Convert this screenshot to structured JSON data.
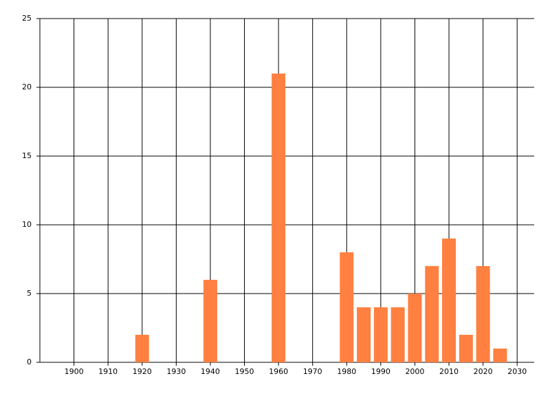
{
  "chart_data": {
    "type": "bar",
    "x": [
      1920,
      1940,
      1960,
      1980,
      1985,
      1990,
      1995,
      2000,
      2005,
      2010,
      2015,
      2020,
      2025
    ],
    "values": [
      2,
      6,
      21,
      8,
      4,
      4,
      4,
      5,
      7,
      9,
      2,
      7,
      1
    ],
    "color": "#ff8040",
    "xlim": [
      1890,
      2035
    ],
    "xticks": [
      1900,
      1910,
      1920,
      1930,
      1940,
      1950,
      1960,
      1970,
      1980,
      1990,
      2000,
      2010,
      2020,
      2030
    ],
    "ylim": [
      0,
      25
    ],
    "yticks": [
      0,
      5,
      10,
      15,
      20,
      25
    ],
    "grid": true
  }
}
